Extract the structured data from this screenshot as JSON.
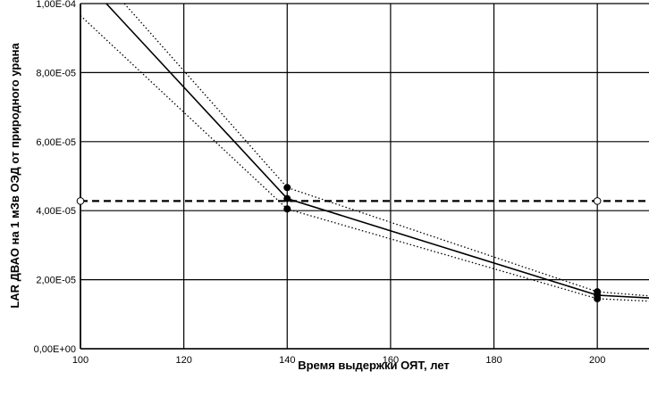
{
  "chart_data": {
    "type": "line",
    "title": "",
    "xlabel": "Время выдержки ОЯТ, лет",
    "ylabel": "LAR ДВАО на 1 мЗв ОЭД от природного  урана",
    "xlim": [
      100,
      210
    ],
    "ylim": [
      0,
      0.0001
    ],
    "xticks": [
      100,
      120,
      140,
      160,
      180,
      200
    ],
    "xtick_labels": [
      "100",
      "120",
      "140",
      "160",
      "180",
      "200"
    ],
    "yticks": [
      0,
      2e-05,
      4e-05,
      6e-05,
      8e-05,
      0.0001
    ],
    "ytick_labels": [
      "0,00E+00",
      "2,00E-05",
      "4,00E-05",
      "6,00E-05",
      "8,00E-05",
      "1,00E-04"
    ],
    "grid": true,
    "legend": "none",
    "series": [
      {
        "style": "solid",
        "color": "#000000",
        "points": [
          [
            105,
            0.0001
          ],
          [
            140,
            4.35e-05
          ],
          [
            200,
            1.55e-05
          ],
          [
            210,
            1.47e-05
          ]
        ],
        "markers": [
          [
            140,
            4.35e-05
          ],
          [
            200,
            1.55e-05
          ]
        ]
      },
      {
        "style": "dotted",
        "color": "#000000",
        "points": [
          [
            108.5,
            0.0001
          ],
          [
            140,
            4.67e-05
          ],
          [
            200,
            1.65e-05
          ],
          [
            210,
            1.53e-05
          ]
        ],
        "markers": [
          [
            140,
            4.67e-05
          ],
          [
            200,
            1.65e-05
          ]
        ]
      },
      {
        "style": "dotted",
        "color": "#000000",
        "points": [
          [
            100,
            9.65e-05
          ],
          [
            140,
            4.05e-05
          ],
          [
            200,
            1.45e-05
          ],
          [
            210,
            1.38e-05
          ]
        ],
        "markers": [
          [
            140,
            4.05e-05
          ],
          [
            200,
            1.45e-05
          ]
        ]
      },
      {
        "style": "dashed",
        "color": "#000000",
        "points": [
          [
            100,
            4.28e-05
          ],
          [
            210,
            4.28e-05
          ]
        ],
        "open_markers": [
          [
            100,
            4.28e-05
          ],
          [
            200,
            4.28e-05
          ]
        ]
      }
    ]
  }
}
